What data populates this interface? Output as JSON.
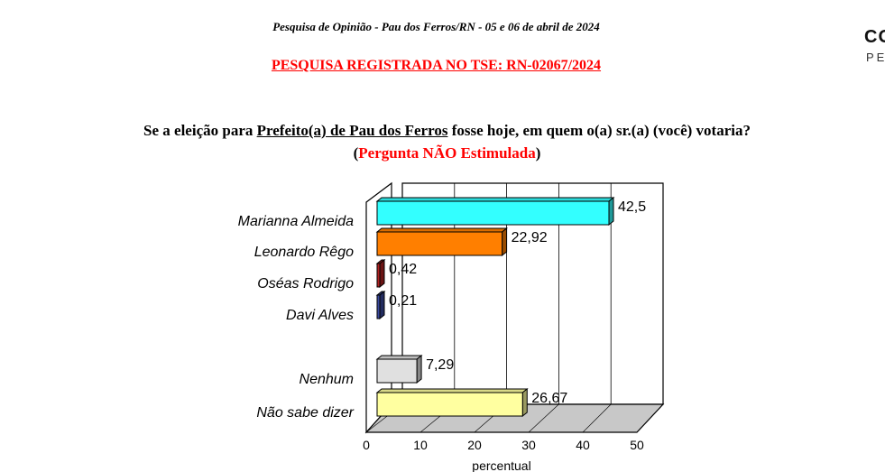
{
  "header": {
    "survey_line": "Pesquisa de Opinião  -  Pau dos Ferros/RN  -  05 e 06 de abril de 2024",
    "tse_line": "PESQUISA REGISTRADA NO TSE:  RN-02067/2024",
    "logo_text": "CO",
    "logo_sub": "PE"
  },
  "question": {
    "prefix": "Se a eleição para ",
    "underlined": "Prefeito(a) de Pau dos Ferros",
    "suffix": " fosse hoje, em quem o(a) sr.(a) (você) votaria?",
    "note_open": "(",
    "note": "Pergunta NÃO Estimulada",
    "note_close": ")"
  },
  "chart_data": {
    "type": "bar",
    "orientation": "horizontal",
    "categories": [
      "Marianna Almeida",
      "Leonardo Rêgo",
      "Oséas Rodrigo",
      "Davi Alves",
      "Nenhum",
      "Não sabe dizer"
    ],
    "values": [
      42.5,
      22.92,
      0.42,
      0.21,
      7.29,
      26.67
    ],
    "value_labels": [
      "42,5",
      "22,92",
      "0,42",
      "0,21",
      "7,29",
      "26,67"
    ],
    "colors": [
      "#33ffff",
      "#ff7f00",
      "#b22222",
      "#3b4aa0",
      "#e0e0e0",
      "#ffffa0"
    ],
    "xlabel": "percentual",
    "ticks": [
      "0",
      "10",
      "20",
      "30",
      "40",
      "50"
    ],
    "xlim": [
      0,
      50
    ],
    "grid": true,
    "style": "3d"
  }
}
